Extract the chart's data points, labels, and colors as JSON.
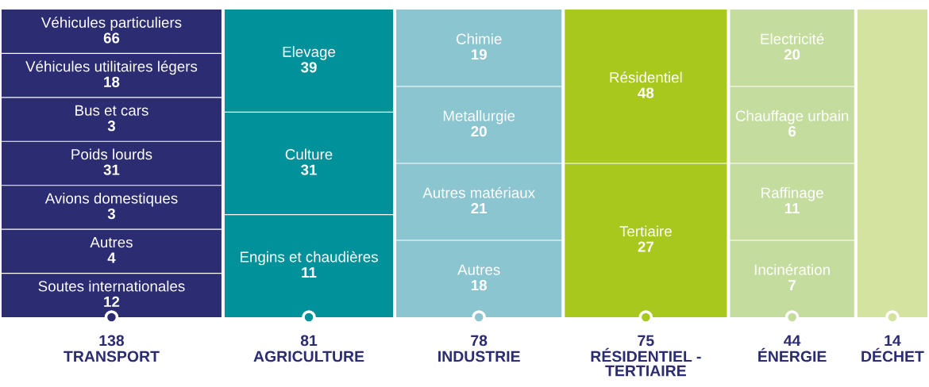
{
  "chart_data": {
    "type": "other",
    "categories": [
      "TRANSPORT",
      "AGRICULTURE",
      "INDUSTRIE",
      "RÉSIDENTIEL - TERTIAIRE",
      "ÉNERGIE",
      "DÉCHET"
    ],
    "values": [
      138,
      81,
      78,
      75,
      44,
      14
    ],
    "colors": [
      "#2b2c72",
      "#00919b",
      "#8bc5d0",
      "#a8c81e",
      "#c4dd9e",
      "#d5e3a0"
    ],
    "data_labels": true,
    "series": [
      {
        "name": "Véhicules particuliers",
        "values": [
          66,
          null,
          null,
          null,
          null,
          null
        ]
      },
      {
        "name": "Véhicules utilitaires légers",
        "values": [
          18,
          null,
          null,
          null,
          null,
          null
        ]
      },
      {
        "name": "Bus et cars",
        "values": [
          3,
          null,
          null,
          null,
          null,
          null
        ]
      },
      {
        "name": "Poids lourds",
        "values": [
          31,
          null,
          null,
          null,
          null,
          null
        ]
      },
      {
        "name": "Avions domestiques",
        "values": [
          3,
          null,
          null,
          null,
          null,
          null
        ]
      },
      {
        "name": "Autres",
        "values": [
          4,
          null,
          null,
          null,
          null,
          null
        ]
      },
      {
        "name": "Soutes internationales",
        "values": [
          12,
          null,
          null,
          null,
          null,
          null
        ]
      },
      {
        "name": "Elevage",
        "values": [
          null,
          39,
          null,
          null,
          null,
          null
        ]
      },
      {
        "name": "Culture",
        "values": [
          null,
          31,
          null,
          null,
          null,
          null
        ]
      },
      {
        "name": "Engins et chaudières",
        "values": [
          null,
          11,
          null,
          null,
          null,
          null
        ]
      },
      {
        "name": "Chimie",
        "values": [
          null,
          null,
          19,
          null,
          null,
          null
        ]
      },
      {
        "name": "Metallurgie",
        "values": [
          null,
          null,
          20,
          null,
          null,
          null
        ]
      },
      {
        "name": "Autres matériaux",
        "values": [
          null,
          null,
          21,
          null,
          null,
          null
        ]
      },
      {
        "name": "Autres",
        "values": [
          null,
          null,
          18,
          null,
          null,
          null
        ]
      },
      {
        "name": "Résidentiel",
        "values": [
          null,
          null,
          null,
          48,
          null,
          null
        ]
      },
      {
        "name": "Tertiaire",
        "values": [
          null,
          null,
          null,
          27,
          null,
          null
        ]
      },
      {
        "name": "Electricité",
        "values": [
          null,
          null,
          null,
          null,
          20,
          null
        ]
      },
      {
        "name": "Chauffage urbain",
        "values": [
          null,
          null,
          null,
          null,
          6,
          null
        ]
      },
      {
        "name": "Raffinage",
        "values": [
          null,
          null,
          null,
          null,
          11,
          null
        ]
      },
      {
        "name": "Incinération",
        "values": [
          null,
          null,
          null,
          null,
          7,
          null
        ]
      }
    ]
  }
}
